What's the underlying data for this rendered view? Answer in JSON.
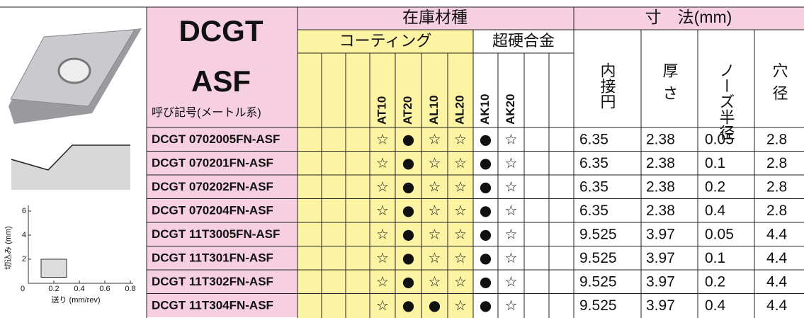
{
  "header": {
    "series_code": "DCGT",
    "chipbreaker": "ASF",
    "designation_label": "呼び記号(メートル系)",
    "stock_grades": "在庫材種",
    "coating": "コーティング",
    "carbide": "超硬合金",
    "dimensions": "寸　法(mm)",
    "dimension_columns": [
      "内接円",
      "厚さ",
      "ノーズ半径",
      "穴径"
    ],
    "grades": [
      "AT10",
      "AT20",
      "AL10",
      "AL20",
      "AK10",
      "AK20"
    ]
  },
  "rows": [
    {
      "name": "DCGT 0702005FN-ASF",
      "grades": [
        "☆",
        "●",
        "☆",
        "☆",
        "●",
        "☆"
      ],
      "dims": [
        6.35,
        2.38,
        0.05,
        2.8
      ]
    },
    {
      "name": "DCGT 070201FN-ASF",
      "grades": [
        "☆",
        "●",
        "☆",
        "☆",
        "●",
        "☆"
      ],
      "dims": [
        6.35,
        2.38,
        0.1,
        2.8
      ]
    },
    {
      "name": "DCGT 070202FN-ASF",
      "grades": [
        "☆",
        "●",
        "☆",
        "☆",
        "●",
        "☆"
      ],
      "dims": [
        6.35,
        2.38,
        0.2,
        2.8
      ]
    },
    {
      "name": "DCGT 070204FN-ASF",
      "grades": [
        "☆",
        "●",
        "☆",
        "☆",
        "●",
        "☆"
      ],
      "dims": [
        6.35,
        2.38,
        0.4,
        2.8
      ]
    },
    {
      "name": "DCGT 11T3005FN-ASF",
      "grades": [
        "☆",
        "●",
        "☆",
        "☆",
        "●",
        "☆"
      ],
      "dims": [
        9.525,
        3.97,
        0.05,
        4.4
      ]
    },
    {
      "name": "DCGT 11T301FN-ASF",
      "grades": [
        "☆",
        "●",
        "☆",
        "☆",
        "●",
        "☆"
      ],
      "dims": [
        9.525,
        3.97,
        0.1,
        4.4
      ]
    },
    {
      "name": "DCGT 11T302FN-ASF",
      "grades": [
        "☆",
        "●",
        "☆",
        "☆",
        "●",
        "☆"
      ],
      "dims": [
        9.525,
        3.97,
        0.2,
        4.4
      ]
    },
    {
      "name": "DCGT 11T304FN-ASF",
      "grades": [
        "☆",
        "●",
        "●",
        "☆",
        "●",
        "☆"
      ],
      "dims": [
        9.525,
        3.97,
        0.4,
        4.4
      ]
    }
  ],
  "chip_chart": {
    "type": "area",
    "xlabel": "送り (mm/rev)",
    "ylabel": "切込み (mm)",
    "xlim": [
      0,
      0.8
    ],
    "ylim": [
      0,
      6
    ],
    "xticks": [
      0,
      0.2,
      0.4,
      0.6,
      0.8
    ],
    "yticks": [
      2,
      4,
      6
    ],
    "region": {
      "x": [
        0.1,
        0.3
      ],
      "y": [
        0.5,
        2
      ]
    },
    "color": "#dcdcdc"
  }
}
